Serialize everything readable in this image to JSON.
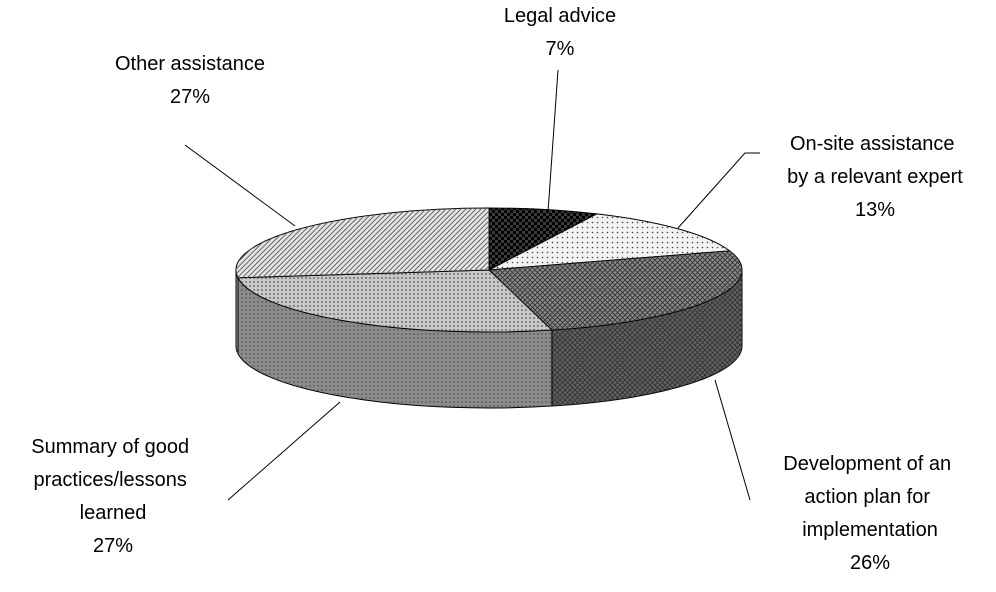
{
  "chart_data": {
    "type": "pie3d",
    "categories": [
      "Legal advice",
      "On-site assistance by a relevant expert",
      "Development of an action plan for implementation",
      "Summary of good practices/lessons learned",
      "Other assistance"
    ],
    "values": [
      7,
      13,
      26,
      27,
      27
    ],
    "value_labels": [
      "7%",
      "13%",
      "26%",
      "27%",
      "27%"
    ],
    "colors": [
      "#3a3a3a",
      "#f2f2f2",
      "#8a8a8a",
      "#c8c8c8",
      "#e6e6e6"
    ]
  }
}
